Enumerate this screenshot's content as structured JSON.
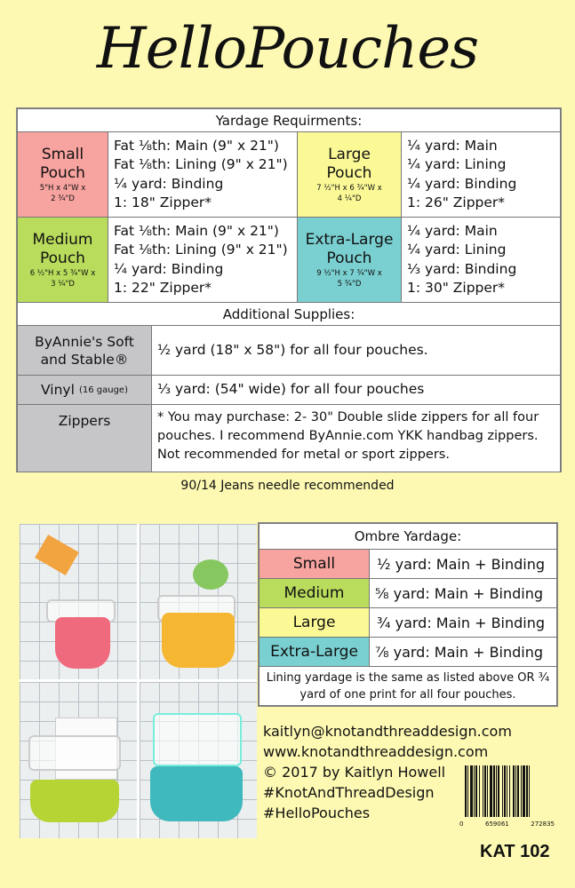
{
  "title": "HelloPouches",
  "colors": {
    "background": "#fdf9b2",
    "small": "#f7a3a0",
    "medium": "#b9dc5c",
    "large": "#fbf996",
    "extra_large": "#7acfd0",
    "supplies_label": "#c6c6c9"
  },
  "yardage": {
    "header": "Yardage Requirments:",
    "pouches": [
      {
        "name": "Small",
        "name2": "Pouch",
        "dims1": "5\"H x 4\"W x",
        "dims2": "2 ¾\"D",
        "lines": [
          "Fat ⅛th: Main (9\" x 21\")",
          "Fat ⅛th: Lining (9\" x 21\")",
          "¼ yard: Binding",
          "1: 18\" Zipper*"
        ]
      },
      {
        "name": "Large",
        "name2": "Pouch",
        "dims1": "7 ½\"H x 6 ¾\"W x",
        "dims2": "4 ¼\"D",
        "lines": [
          "¼ yard: Main",
          "¼ yard: Lining",
          "¼ yard: Binding",
          "1: 26\" Zipper*"
        ]
      },
      {
        "name": "Medium",
        "name2": "Pouch",
        "dims1": "6 ½\"H x 5 ¾\"W x",
        "dims2": "3 ¼\"D",
        "lines": [
          "Fat ⅛th: Main (9\" x 21\")",
          "Fat ⅛th: Lining (9\" x 21\")",
          "¼ yard: Binding",
          "1: 22\" Zipper*"
        ]
      },
      {
        "name": "Extra-Large",
        "name2": "Pouch",
        "dims1": "9 ½\"H x 7 ¾\"W x",
        "dims2": "5 ¾\"D",
        "lines": [
          "¼ yard: Main",
          "¼ yard: Lining",
          "⅓ yard: Binding",
          "1: 30\" Zipper*"
        ]
      }
    ]
  },
  "supplies": {
    "header": "Additional Supplies:",
    "rows": [
      {
        "label": "ByAnnie's Soft and Stable®",
        "value": "½ yard (18\" x 58\") for all four pouches."
      },
      {
        "label": "Vinyl",
        "label_note": "(16 gauge)",
        "value": "⅓ yard: (54\" wide) for all four pouches"
      },
      {
        "label": "Zippers",
        "value": "* You may purchase: 2- 30\" Double slide zippers for all four pouches. I recommend ByAnnie.com YKK handbag zippers. Not recommended for metal or sport zippers."
      }
    ]
  },
  "needle_note": "90/14 Jeans needle recommended",
  "ombre": {
    "header": "Ombre Yardage:",
    "rows": [
      {
        "label": "Small",
        "value": "½ yard: Main + Binding"
      },
      {
        "label": "Medium",
        "value": "⅝ yard: Main + Binding"
      },
      {
        "label": "Large",
        "value": "¾ yard: Main + Binding"
      },
      {
        "label": "Extra-Large",
        "value": "⅞ yard: Main + Binding"
      }
    ],
    "footnote": "Lining yardage is the same as listed above OR ¾ yard of one print for all four pouches."
  },
  "contact": [
    "kaitlyn@knotandthreaddesign.com",
    "www.knotandthreaddesign.com",
    "© 2017 by Kaitlyn Howell",
    "#KnotAndThreadDesign",
    "#HelloPouches"
  ],
  "barcode": {
    "d0": "0",
    "d1": "659061",
    "d2": "272835"
  },
  "product_code": "KAT 102"
}
